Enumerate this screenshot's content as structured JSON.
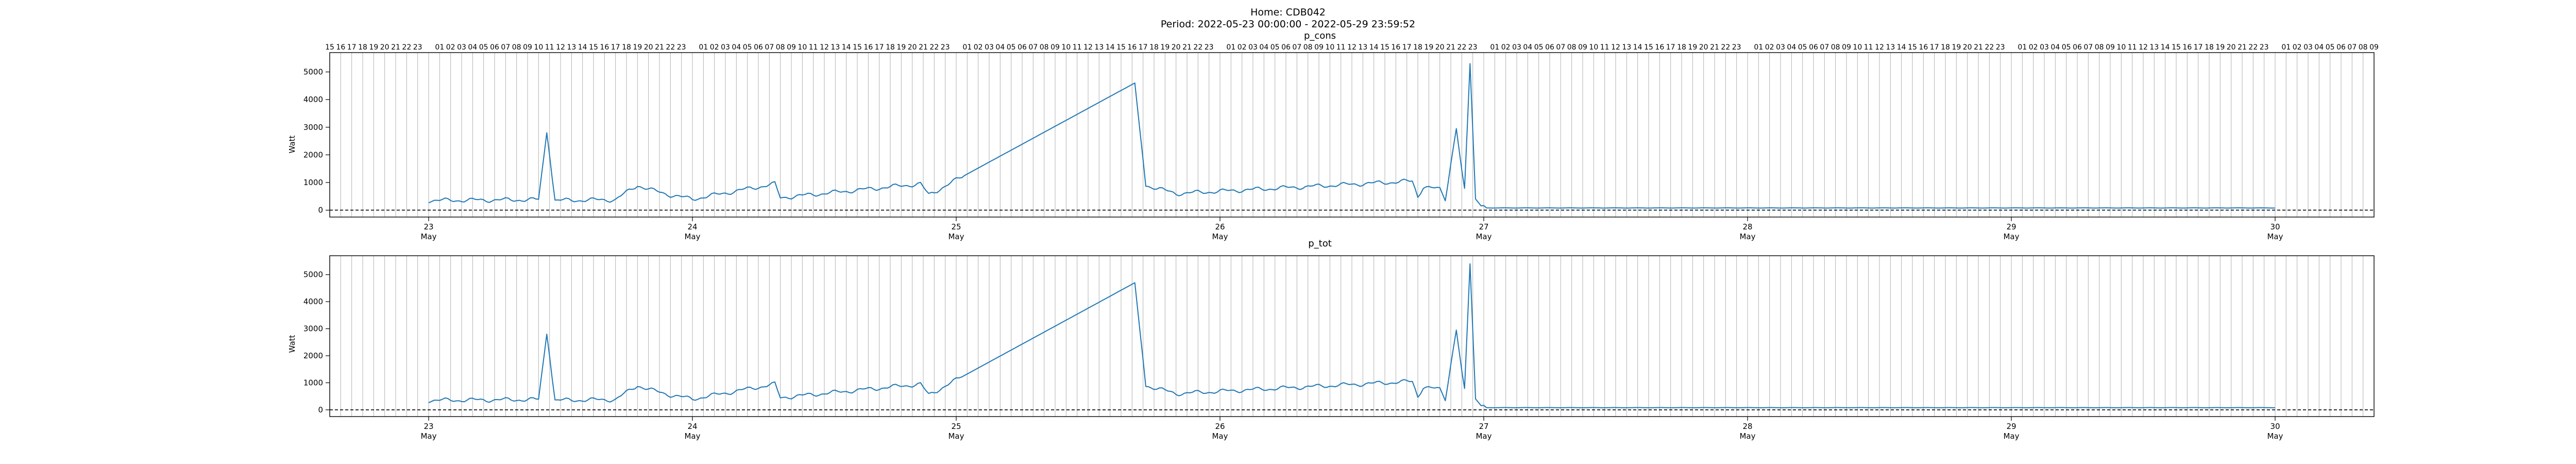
{
  "figure": {
    "title_line1": "Home: CDB042",
    "title_line2": "Period: 2022-05-23 00:00:00 - 2022-05-29 23:59:52"
  },
  "colors": {
    "series": "#1f77b4",
    "hour_lines": "#b0b0b0",
    "zero_line": "#000000",
    "frame": "#000000"
  },
  "chart_data": [
    {
      "type": "line",
      "title": "p_cons",
      "ylabel": "Watt",
      "xlim": [
        "2022-05-22T15:00",
        "2022-05-30T09:00"
      ],
      "ylim": [
        -250,
        5700
      ],
      "yticks": [
        0,
        1000,
        2000,
        3000,
        4000,
        5000
      ],
      "grid": "hourly vertical lines",
      "hour_tick_labels_top": true,
      "zero_line": "dashed",
      "series": [
        {
          "x_start": "2022-05-23T00:00",
          "x_step_hours": 0.25,
          "keypoints": [
            [
              "2022-05-23T00:00",
              350
            ],
            [
              "2022-05-23T10:00",
              380
            ],
            [
              "2022-05-23T10:45",
              2800
            ],
            [
              "2022-05-23T11:30",
              350
            ],
            [
              "2022-05-23T17:00",
              380
            ],
            [
              "2022-05-23T19:00",
              900
            ],
            [
              "2022-05-23T20:30",
              700
            ],
            [
              "2022-05-23T22:00",
              550
            ],
            [
              "2022-05-24T00:00",
              400
            ],
            [
              "2022-05-24T07:30",
              950
            ],
            [
              "2022-05-24T08:00",
              450
            ],
            [
              "2022-05-24T20:45",
              950
            ],
            [
              "2022-05-24T21:30",
              550
            ],
            [
              "2022-05-25T16:15",
              4600
            ],
            [
              "2022-05-25T17:15",
              900
            ],
            [
              "2022-05-25T20:00",
              600
            ],
            [
              "2022-05-26T17:30",
              1050
            ],
            [
              "2022-05-26T18:00",
              500
            ],
            [
              "2022-05-26T18:30",
              850
            ],
            [
              "2022-05-26T20:00",
              750
            ],
            [
              "2022-05-26T20:30",
              400
            ],
            [
              "2022-05-26T21:30",
              2950
            ],
            [
              "2022-05-26T22:15",
              700
            ],
            [
              "2022-05-26T22:45",
              5300
            ],
            [
              "2022-05-26T23:15",
              400
            ],
            [
              "2022-05-27T00:15",
              80
            ],
            [
              "2022-05-30T00:00",
              80
            ]
          ]
        }
      ],
      "x_date_ticks": [
        {
          "x": "2022-05-23",
          "day": "23",
          "month": "May"
        },
        {
          "x": "2022-05-24",
          "day": "24",
          "month": "May"
        },
        {
          "x": "2022-05-25",
          "day": "25",
          "month": "May"
        },
        {
          "x": "2022-05-26",
          "day": "26",
          "month": "May"
        },
        {
          "x": "2022-05-27",
          "day": "27",
          "month": "May"
        },
        {
          "x": "2022-05-28",
          "day": "28",
          "month": "May"
        },
        {
          "x": "2022-05-29",
          "day": "29",
          "month": "May"
        },
        {
          "x": "2022-05-30",
          "day": "30",
          "month": "May"
        }
      ]
    },
    {
      "type": "line",
      "title": "p_tot",
      "ylabel": "Watt",
      "xlim": [
        "2022-05-22T15:00",
        "2022-05-30T09:00"
      ],
      "ylim": [
        -250,
        5700
      ],
      "yticks": [
        0,
        1000,
        2000,
        3000,
        4000,
        5000
      ],
      "grid": "hourly vertical lines",
      "hour_tick_labels_top": false,
      "zero_line": "dashed",
      "series": [
        {
          "x_start": "2022-05-23T00:00",
          "x_step_hours": 0.25,
          "keypoints": [
            [
              "2022-05-23T00:00",
              350
            ],
            [
              "2022-05-23T10:00",
              380
            ],
            [
              "2022-05-23T10:45",
              2800
            ],
            [
              "2022-05-23T11:30",
              350
            ],
            [
              "2022-05-23T17:00",
              380
            ],
            [
              "2022-05-23T19:00",
              900
            ],
            [
              "2022-05-23T20:30",
              700
            ],
            [
              "2022-05-23T22:00",
              550
            ],
            [
              "2022-05-24T00:00",
              400
            ],
            [
              "2022-05-24T07:30",
              950
            ],
            [
              "2022-05-24T08:00",
              450
            ],
            [
              "2022-05-24T20:45",
              950
            ],
            [
              "2022-05-24T21:30",
              550
            ],
            [
              "2022-05-25T16:15",
              4700
            ],
            [
              "2022-05-25T17:15",
              900
            ],
            [
              "2022-05-25T20:00",
              600
            ],
            [
              "2022-05-26T17:30",
              1050
            ],
            [
              "2022-05-26T18:00",
              500
            ],
            [
              "2022-05-26T18:30",
              850
            ],
            [
              "2022-05-26T20:00",
              750
            ],
            [
              "2022-05-26T20:30",
              400
            ],
            [
              "2022-05-26T21:30",
              2950
            ],
            [
              "2022-05-26T22:15",
              700
            ],
            [
              "2022-05-26T22:45",
              5400
            ],
            [
              "2022-05-26T23:15",
              400
            ],
            [
              "2022-05-27T00:15",
              80
            ],
            [
              "2022-05-30T00:00",
              80
            ]
          ]
        }
      ],
      "x_date_ticks": [
        {
          "x": "2022-05-23",
          "day": "23",
          "month": "May"
        },
        {
          "x": "2022-05-24",
          "day": "24",
          "month": "May"
        },
        {
          "x": "2022-05-25",
          "day": "25",
          "month": "May"
        },
        {
          "x": "2022-05-26",
          "day": "26",
          "month": "May"
        },
        {
          "x": "2022-05-27",
          "day": "27",
          "month": "May"
        },
        {
          "x": "2022-05-28",
          "day": "28",
          "month": "May"
        },
        {
          "x": "2022-05-29",
          "day": "29",
          "month": "May"
        },
        {
          "x": "2022-05-30",
          "day": "30",
          "month": "May"
        }
      ]
    }
  ]
}
